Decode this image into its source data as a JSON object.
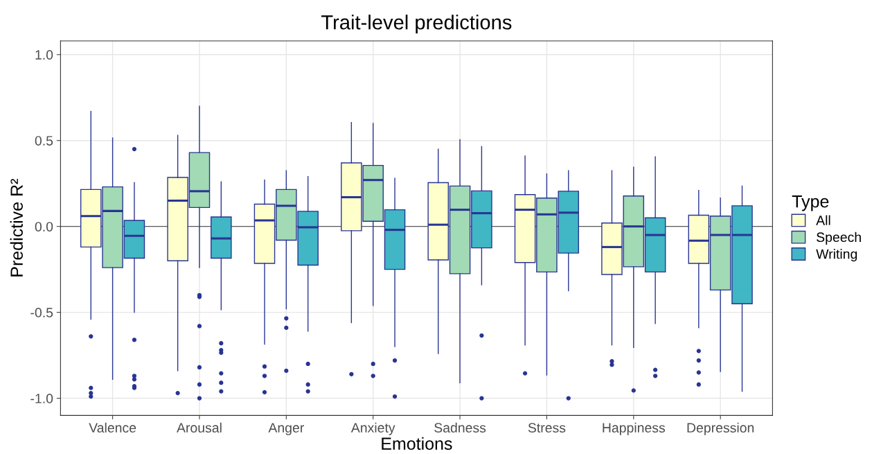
{
  "chart_data": {
    "type": "box",
    "title": "Trait-level predictions",
    "xlabel": "Emotions",
    "ylabel": "Predictive R²",
    "legend_title": "Type",
    "legend": "right",
    "grid": true,
    "categories": [
      "Valence",
      "Arousal",
      "Anger",
      "Anxiety",
      "Sadness",
      "Stress",
      "Happiness",
      "Depression"
    ],
    "ylim": [
      -1.1,
      1.08
    ],
    "yticks": [
      {
        "value": -1.0,
        "label": "-1.0"
      },
      {
        "value": -0.5,
        "label": "-0.5"
      },
      {
        "value": 0,
        "label": "0.0"
      },
      {
        "value": 0.5,
        "label": "0.5"
      },
      {
        "value": 1.0,
        "label": "1.0"
      }
    ],
    "ref_lines": [
      {
        "axis": "y",
        "value": 0,
        "color": "#595959"
      }
    ],
    "series": [
      {
        "name": "All",
        "color": "#ffffcc",
        "boxes": [
          {
            "low": -0.54,
            "q1": -0.12,
            "median": 0.06,
            "q3": 0.215,
            "high": 0.67,
            "outliers": [
              -0.64,
              -0.94,
              -0.97,
              -0.99
            ]
          },
          {
            "low": -0.84,
            "q1": -0.2,
            "median": 0.15,
            "q3": 0.285,
            "high": 0.53,
            "outliers": [
              -0.97
            ]
          },
          {
            "low": -0.685,
            "q1": -0.215,
            "median": 0.035,
            "q3": 0.13,
            "high": 0.27,
            "outliers": [
              -0.815,
              -0.87,
              -0.965
            ]
          },
          {
            "low": -0.56,
            "q1": -0.025,
            "median": 0.17,
            "q3": 0.37,
            "high": 0.605,
            "outliers": [
              -0.86
            ]
          },
          {
            "low": -0.74,
            "q1": -0.195,
            "median": 0.01,
            "q3": 0.255,
            "high": 0.45
          },
          {
            "low": -0.69,
            "q1": -0.21,
            "median": 0.097,
            "q3": 0.185,
            "high": 0.41,
            "outliers": [
              -0.855
            ]
          },
          {
            "low": -0.69,
            "q1": -0.28,
            "median": -0.12,
            "q3": 0.02,
            "high": 0.325,
            "outliers": [
              -0.785,
              -0.805
            ]
          },
          {
            "low": -0.59,
            "q1": -0.215,
            "median": -0.083,
            "q3": 0.065,
            "high": 0.21,
            "outliers": [
              -0.725,
              -0.78,
              -0.85,
              -0.92
            ]
          }
        ]
      },
      {
        "name": "Speech",
        "color": "#a1dab4",
        "boxes": [
          {
            "low": -0.89,
            "q1": -0.24,
            "median": 0.09,
            "q3": 0.23,
            "high": 0.515
          },
          {
            "low": -0.24,
            "q1": 0.11,
            "median": 0.205,
            "q3": 0.43,
            "high": 0.7,
            "outliers": [
              -0.4,
              -0.41,
              -0.58,
              -0.82,
              -0.92,
              -1.0
            ]
          },
          {
            "low": -0.48,
            "q1": -0.08,
            "median": 0.12,
            "q3": 0.215,
            "high": 0.325,
            "outliers": [
              -0.535,
              -0.59,
              -0.84
            ]
          },
          {
            "low": -0.46,
            "q1": 0.03,
            "median": 0.27,
            "q3": 0.355,
            "high": 0.6,
            "outliers": [
              -0.8,
              -0.87
            ]
          },
          {
            "low": -0.91,
            "q1": -0.275,
            "median": 0.097,
            "q3": 0.235,
            "high": 0.505
          },
          {
            "low": -0.865,
            "q1": -0.265,
            "median": 0.07,
            "q3": 0.165,
            "high": 0.305
          },
          {
            "low": -0.705,
            "q1": -0.235,
            "median": 0.0,
            "q3": 0.177,
            "high": 0.345,
            "outliers": [
              -0.955
            ]
          },
          {
            "low": -0.845,
            "q1": -0.37,
            "median": -0.05,
            "q3": 0.06,
            "high": 0.165
          }
        ]
      },
      {
        "name": "Writing",
        "color": "#41b6c4",
        "boxes": [
          {
            "low": -0.5,
            "q1": -0.185,
            "median": -0.055,
            "q3": 0.035,
            "high": 0.255,
            "outliers": [
              0.45,
              -0.66,
              -0.87,
              -0.89,
              -0.93,
              -0.94
            ]
          },
          {
            "low": -0.485,
            "q1": -0.185,
            "median": -0.07,
            "q3": 0.055,
            "high": 0.26,
            "outliers": [
              -0.68,
              -0.72,
              -0.735,
              -0.855,
              -0.91,
              -0.96
            ]
          },
          {
            "low": -0.61,
            "q1": -0.225,
            "median": -0.005,
            "q3": 0.088,
            "high": 0.29,
            "outliers": [
              -0.8,
              -0.92,
              -0.96
            ]
          },
          {
            "low": -0.7,
            "q1": -0.25,
            "median": -0.02,
            "q3": 0.097,
            "high": 0.28,
            "outliers": [
              -0.78,
              -0.99
            ]
          },
          {
            "low": -0.34,
            "q1": -0.125,
            "median": 0.077,
            "q3": 0.207,
            "high": 0.465,
            "outliers": [
              -0.635,
              -1.0
            ]
          },
          {
            "low": -0.375,
            "q1": -0.155,
            "median": 0.08,
            "q3": 0.205,
            "high": 0.325,
            "outliers": [
              -1.0
            ]
          },
          {
            "low": -0.565,
            "q1": -0.265,
            "median": -0.05,
            "q3": 0.05,
            "high": 0.405,
            "outliers": [
              -0.835,
              -0.87
            ]
          },
          {
            "low": -0.96,
            "q1": -0.45,
            "median": -0.05,
            "q3": 0.12,
            "high": 0.235
          }
        ]
      }
    ]
  }
}
